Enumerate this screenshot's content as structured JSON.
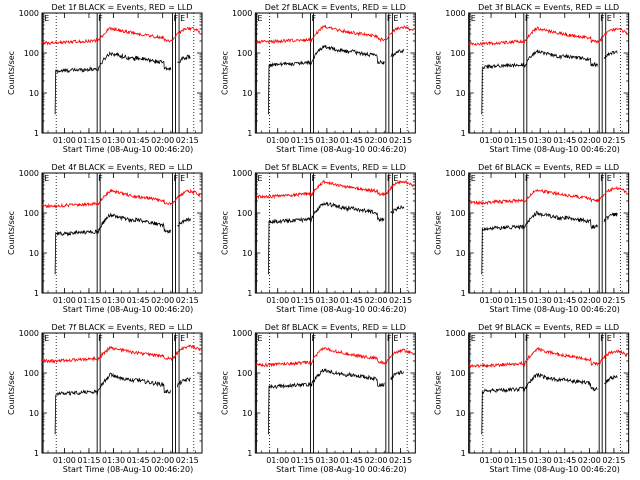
{
  "chart_data": {
    "type": "line",
    "scale": "log",
    "ylim": [
      1,
      1000
    ],
    "ytick_labels": [
      "1",
      "10",
      "100",
      "1000"
    ],
    "ylabel": "Counts/sec",
    "xlabel": "Start Time (08-Aug-10 00:46:20)",
    "xlim": [
      "00:46:20",
      "02:24:00"
    ],
    "xtick_labels": [
      "01:00",
      "01:15",
      "01:30",
      "01:45",
      "02:00",
      "02:15"
    ],
    "colors": {
      "events": "#000000",
      "lld": "#ff0000"
    },
    "markers": [
      {
        "label": "E",
        "time": "00:47:00"
      },
      {
        "label": "F",
        "time": "01:20:00"
      },
      {
        "label": "F",
        "time": "02:06:00"
      },
      {
        "label": "E",
        "time": "02:10:00"
      }
    ],
    "panels": [
      {
        "title": "Det 1f BLACK = Events, RED = LLD",
        "events_level": 35,
        "lld_level": 180,
        "events_peak": 100,
        "lld_peak": 420
      },
      {
        "title": "Det 2f BLACK = Events, RED = LLD",
        "events_level": 50,
        "lld_level": 190,
        "events_peak": 150,
        "lld_peak": 460
      },
      {
        "title": "Det 3f BLACK = Events, RED = LLD",
        "events_level": 45,
        "lld_level": 170,
        "events_peak": 110,
        "lld_peak": 420
      },
      {
        "title": "Det 4f BLACK = Events, RED = LLD",
        "events_level": 30,
        "lld_level": 150,
        "events_peak": 90,
        "lld_peak": 360
      },
      {
        "title": "Det 5f BLACK = Events, RED = LLD",
        "events_level": 60,
        "lld_level": 260,
        "events_peak": 180,
        "lld_peak": 600
      },
      {
        "title": "Det 6f BLACK = Events, RED = LLD",
        "events_level": 40,
        "lld_level": 180,
        "events_peak": 100,
        "lld_peak": 380
      },
      {
        "title": "Det 7f BLACK = Events, RED = LLD",
        "events_level": 30,
        "lld_level": 200,
        "events_peak": 90,
        "lld_peak": 430
      },
      {
        "title": "Det 8f BLACK = Events, RED = LLD",
        "events_level": 45,
        "lld_level": 160,
        "events_peak": 120,
        "lld_peak": 420
      },
      {
        "title": "Det 9f BLACK = Events, RED = LLD",
        "events_level": 35,
        "lld_level": 150,
        "events_peak": 90,
        "lld_peak": 400
      }
    ]
  }
}
